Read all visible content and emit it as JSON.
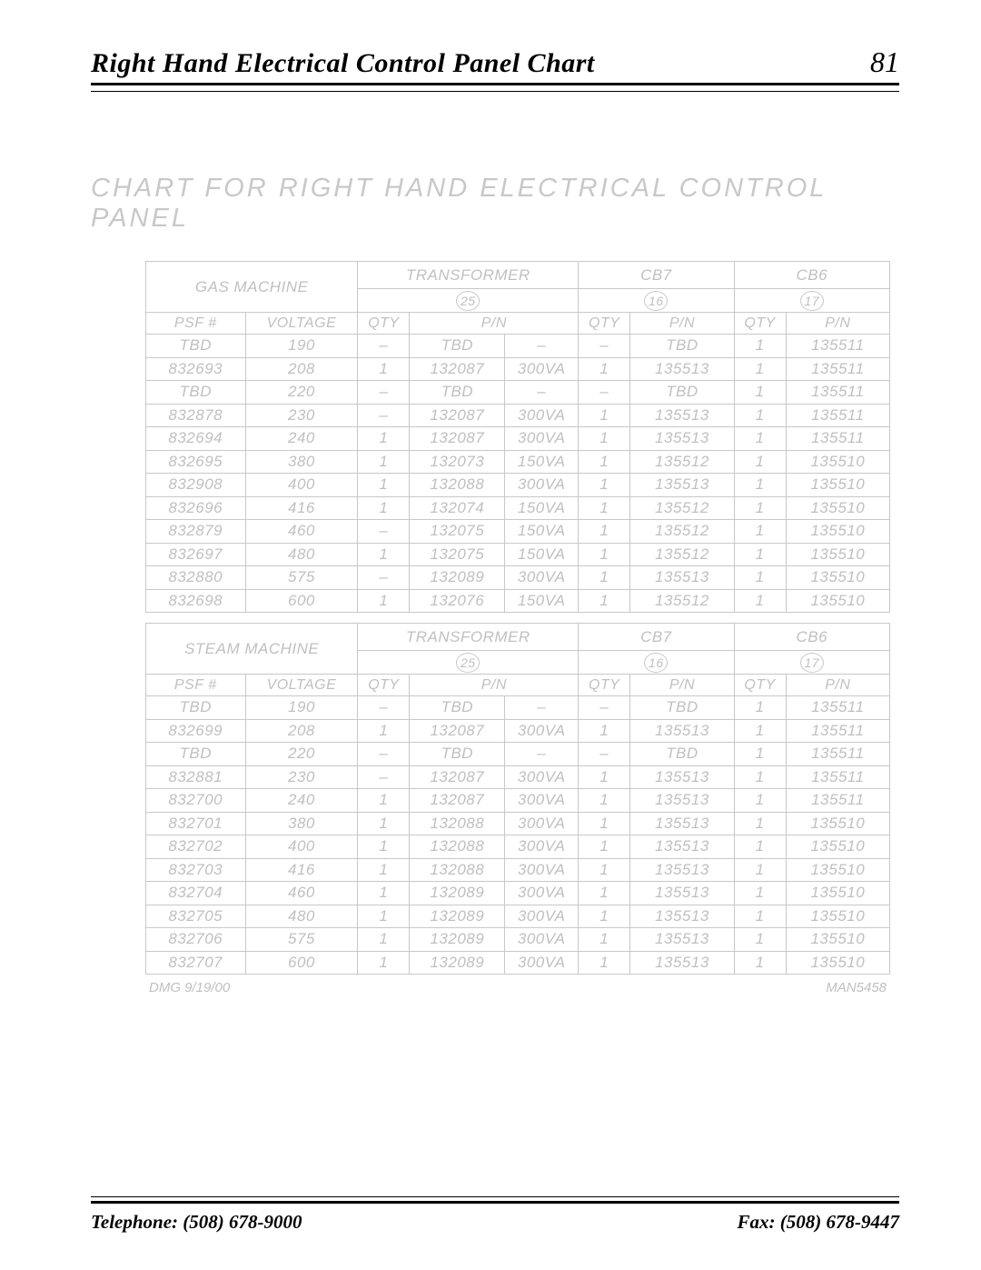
{
  "header": {
    "title": "Right Hand Electrical Control Panel Chart",
    "page": "81"
  },
  "chart_title": "CHART FOR RIGHT HAND ELECTRICAL CONTROL PANEL",
  "col_labels": {
    "psf": "PSF #",
    "voltage": "VOLTAGE",
    "transformer": "TRANSFORMER",
    "cb7": "CB7",
    "cb6": "CB6",
    "qty": "QTY",
    "pn": "P/N"
  },
  "circles": {
    "transformer": "25",
    "cb7": "16",
    "cb6": "17"
  },
  "sections": [
    {
      "name": "GAS MACHINE",
      "rows": [
        {
          "psf": "TBD",
          "volt": "190",
          "tq": "–",
          "tpn": "TBD",
          "tva": "–",
          "q7": "–",
          "p7": "TBD",
          "q6": "1",
          "p6": "135511"
        },
        {
          "psf": "832693",
          "volt": "208",
          "tq": "1",
          "tpn": "132087",
          "tva": "300VA",
          "q7": "1",
          "p7": "135513",
          "q6": "1",
          "p6": "135511"
        },
        {
          "psf": "TBD",
          "volt": "220",
          "tq": "–",
          "tpn": "TBD",
          "tva": "–",
          "q7": "–",
          "p7": "TBD",
          "q6": "1",
          "p6": "135511"
        },
        {
          "psf": "832878",
          "volt": "230",
          "tq": "–",
          "tpn": "132087",
          "tva": "300VA",
          "q7": "1",
          "p7": "135513",
          "q6": "1",
          "p6": "135511"
        },
        {
          "psf": "832694",
          "volt": "240",
          "tq": "1",
          "tpn": "132087",
          "tva": "300VA",
          "q7": "1",
          "p7": "135513",
          "q6": "1",
          "p6": "135511"
        },
        {
          "psf": "832695",
          "volt": "380",
          "tq": "1",
          "tpn": "132073",
          "tva": "150VA",
          "q7": "1",
          "p7": "135512",
          "q6": "1",
          "p6": "135510"
        },
        {
          "psf": "832908",
          "volt": "400",
          "tq": "1",
          "tpn": "132088",
          "tva": "300VA",
          "q7": "1",
          "p7": "135513",
          "q6": "1",
          "p6": "135510"
        },
        {
          "psf": "832696",
          "volt": "416",
          "tq": "1",
          "tpn": "132074",
          "tva": "150VA",
          "q7": "1",
          "p7": "135512",
          "q6": "1",
          "p6": "135510"
        },
        {
          "psf": "832879",
          "volt": "460",
          "tq": "–",
          "tpn": "132075",
          "tva": "150VA",
          "q7": "1",
          "p7": "135512",
          "q6": "1",
          "p6": "135510"
        },
        {
          "psf": "832697",
          "volt": "480",
          "tq": "1",
          "tpn": "132075",
          "tva": "150VA",
          "q7": "1",
          "p7": "135512",
          "q6": "1",
          "p6": "135510"
        },
        {
          "psf": "832880",
          "volt": "575",
          "tq": "–",
          "tpn": "132089",
          "tva": "300VA",
          "q7": "1",
          "p7": "135513",
          "q6": "1",
          "p6": "135510"
        },
        {
          "psf": "832698",
          "volt": "600",
          "tq": "1",
          "tpn": "132076",
          "tva": "150VA",
          "q7": "1",
          "p7": "135512",
          "q6": "1",
          "p6": "135510"
        }
      ]
    },
    {
      "name": "STEAM MACHINE",
      "rows": [
        {
          "psf": "TBD",
          "volt": "190",
          "tq": "–",
          "tpn": "TBD",
          "tva": "–",
          "q7": "–",
          "p7": "TBD",
          "q6": "1",
          "p6": "135511"
        },
        {
          "psf": "832699",
          "volt": "208",
          "tq": "1",
          "tpn": "132087",
          "tva": "300VA",
          "q7": "1",
          "p7": "135513",
          "q6": "1",
          "p6": "135511"
        },
        {
          "psf": "TBD",
          "volt": "220",
          "tq": "–",
          "tpn": "TBD",
          "tva": "–",
          "q7": "–",
          "p7": "TBD",
          "q6": "1",
          "p6": "135511"
        },
        {
          "psf": "832881",
          "volt": "230",
          "tq": "–",
          "tpn": "132087",
          "tva": "300VA",
          "q7": "1",
          "p7": "135513",
          "q6": "1",
          "p6": "135511"
        },
        {
          "psf": "832700",
          "volt": "240",
          "tq": "1",
          "tpn": "132087",
          "tva": "300VA",
          "q7": "1",
          "p7": "135513",
          "q6": "1",
          "p6": "135511"
        },
        {
          "psf": "832701",
          "volt": "380",
          "tq": "1",
          "tpn": "132088",
          "tva": "300VA",
          "q7": "1",
          "p7": "135513",
          "q6": "1",
          "p6": "135510"
        },
        {
          "psf": "832702",
          "volt": "400",
          "tq": "1",
          "tpn": "132088",
          "tva": "300VA",
          "q7": "1",
          "p7": "135513",
          "q6": "1",
          "p6": "135510"
        },
        {
          "psf": "832703",
          "volt": "416",
          "tq": "1",
          "tpn": "132088",
          "tva": "300VA",
          "q7": "1",
          "p7": "135513",
          "q6": "1",
          "p6": "135510"
        },
        {
          "psf": "832704",
          "volt": "460",
          "tq": "1",
          "tpn": "132089",
          "tva": "300VA",
          "q7": "1",
          "p7": "135513",
          "q6": "1",
          "p6": "135510"
        },
        {
          "psf": "832705",
          "volt": "480",
          "tq": "1",
          "tpn": "132089",
          "tva": "300VA",
          "q7": "1",
          "p7": "135513",
          "q6": "1",
          "p6": "135510"
        },
        {
          "psf": "832706",
          "volt": "575",
          "tq": "1",
          "tpn": "132089",
          "tva": "300VA",
          "q7": "1",
          "p7": "135513",
          "q6": "1",
          "p6": "135510"
        },
        {
          "psf": "832707",
          "volt": "600",
          "tq": "1",
          "tpn": "132089",
          "tva": "300VA",
          "q7": "1",
          "p7": "135513",
          "q6": "1",
          "p6": "135510"
        }
      ]
    }
  ],
  "footnote_left": "DMG 9/19/00",
  "footnote_right": "MAN5458",
  "footer": {
    "telephone": "Telephone: (508) 678-9000",
    "fax": "Fax: (508) 678-9447"
  }
}
